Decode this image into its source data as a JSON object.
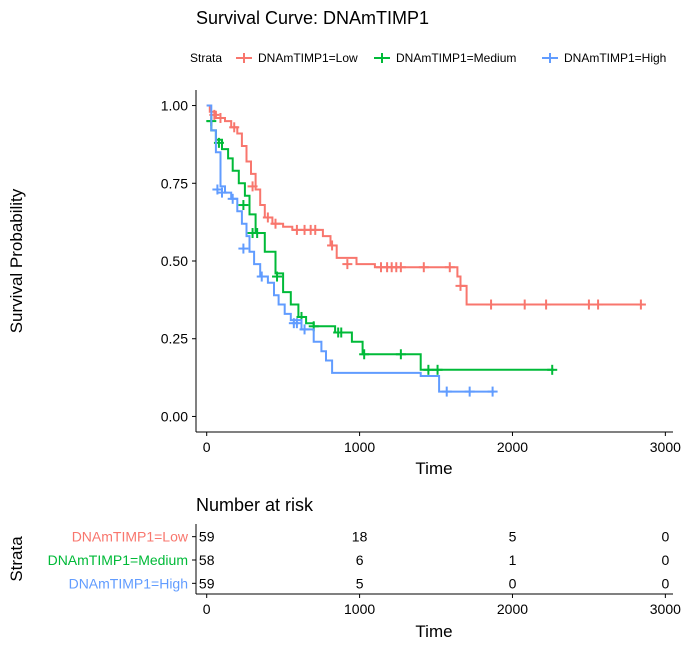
{
  "chart_data": [
    {
      "type": "line",
      "title": "Survival Curve: DNAmTIMP1",
      "xlabel": "Time",
      "ylabel": "Survival Probability",
      "xlim": [
        -70,
        3050
      ],
      "ylim": [
        -0.05,
        1.05
      ],
      "x_ticks": [
        0,
        1000,
        2000,
        3000
      ],
      "y_ticks": [
        0.0,
        0.25,
        0.5,
        0.75,
        1.0
      ],
      "y_tick_labels": [
        "0.00",
        "0.25",
        "0.50",
        "0.75",
        "1.00"
      ],
      "grid": false,
      "legend": {
        "title": "Strata",
        "position": "top",
        "entries": [
          "DNAmTIMP1=Low",
          "DNAmTIMP1=Medium",
          "DNAmTIMP1=High"
        ]
      },
      "series": [
        {
          "name": "DNAmTIMP1=Low",
          "color": "#F8766D",
          "steps": [
            [
              0,
              1.0
            ],
            [
              20,
              0.98
            ],
            [
              60,
              0.96
            ],
            [
              120,
              0.95
            ],
            [
              160,
              0.93
            ],
            [
              200,
              0.91
            ],
            [
              230,
              0.87
            ],
            [
              260,
              0.82
            ],
            [
              290,
              0.78
            ],
            [
              320,
              0.73
            ],
            [
              350,
              0.68
            ],
            [
              380,
              0.64
            ],
            [
              430,
              0.62
            ],
            [
              500,
              0.61
            ],
            [
              560,
              0.6
            ],
            [
              760,
              0.58
            ],
            [
              810,
              0.55
            ],
            [
              850,
              0.51
            ],
            [
              980,
              0.49
            ],
            [
              1100,
              0.48
            ],
            [
              1640,
              0.45
            ],
            [
              1660,
              0.42
            ],
            [
              1700,
              0.36
            ],
            [
              2860,
              0.36
            ]
          ],
          "censored": [
            [
              50,
              0.97
            ],
            [
              90,
              0.96
            ],
            [
              180,
              0.93
            ],
            [
              300,
              0.74
            ],
            [
              400,
              0.64
            ],
            [
              450,
              0.62
            ],
            [
              590,
              0.6
            ],
            [
              640,
              0.6
            ],
            [
              680,
              0.6
            ],
            [
              710,
              0.6
            ],
            [
              820,
              0.55
            ],
            [
              920,
              0.49
            ],
            [
              1140,
              0.48
            ],
            [
              1180,
              0.48
            ],
            [
              1210,
              0.48
            ],
            [
              1240,
              0.48
            ],
            [
              1270,
              0.48
            ],
            [
              1420,
              0.48
            ],
            [
              1590,
              0.48
            ],
            [
              1660,
              0.42
            ],
            [
              1860,
              0.36
            ],
            [
              2080,
              0.36
            ],
            [
              2220,
              0.36
            ],
            [
              2500,
              0.36
            ],
            [
              2560,
              0.36
            ],
            [
              2840,
              0.36
            ]
          ]
        },
        {
          "name": "DNAmTIMP1=Medium",
          "color": "#00BA38",
          "steps": [
            [
              0,
              0.95
            ],
            [
              30,
              0.92
            ],
            [
              60,
              0.89
            ],
            [
              100,
              0.86
            ],
            [
              140,
              0.83
            ],
            [
              170,
              0.79
            ],
            [
              210,
              0.75
            ],
            [
              250,
              0.71
            ],
            [
              280,
              0.65
            ],
            [
              320,
              0.59
            ],
            [
              380,
              0.53
            ],
            [
              450,
              0.46
            ],
            [
              500,
              0.4
            ],
            [
              550,
              0.36
            ],
            [
              600,
              0.32
            ],
            [
              650,
              0.3
            ],
            [
              700,
              0.29
            ],
            [
              840,
              0.27
            ],
            [
              950,
              0.24
            ],
            [
              1020,
              0.2
            ],
            [
              1380,
              0.2
            ],
            [
              1400,
              0.15
            ],
            [
              2270,
              0.15
            ]
          ],
          "censored": [
            [
              30,
              0.95
            ],
            [
              80,
              0.88
            ],
            [
              240,
              0.68
            ],
            [
              300,
              0.59
            ],
            [
              330,
              0.59
            ],
            [
              460,
              0.45
            ],
            [
              620,
              0.32
            ],
            [
              700,
              0.29
            ],
            [
              860,
              0.27
            ],
            [
              880,
              0.27
            ],
            [
              1030,
              0.2
            ],
            [
              1270,
              0.2
            ],
            [
              1450,
              0.15
            ],
            [
              1510,
              0.15
            ],
            [
              2260,
              0.15
            ]
          ]
        },
        {
          "name": "DNAmTIMP1=High",
          "color": "#619CFF",
          "steps": [
            [
              0,
              1.0
            ],
            [
              30,
              0.92
            ],
            [
              60,
              0.85
            ],
            [
              90,
              0.74
            ],
            [
              120,
              0.72
            ],
            [
              160,
              0.7
            ],
            [
              200,
              0.66
            ],
            [
              230,
              0.62
            ],
            [
              260,
              0.58
            ],
            [
              280,
              0.53
            ],
            [
              310,
              0.49
            ],
            [
              350,
              0.45
            ],
            [
              400,
              0.43
            ],
            [
              440,
              0.39
            ],
            [
              470,
              0.36
            ],
            [
              510,
              0.33
            ],
            [
              550,
              0.31
            ],
            [
              620,
              0.28
            ],
            [
              700,
              0.24
            ],
            [
              750,
              0.21
            ],
            [
              780,
              0.18
            ],
            [
              820,
              0.14
            ],
            [
              1400,
              0.13
            ],
            [
              1520,
              0.08
            ],
            [
              1880,
              0.08
            ]
          ],
          "censored": [
            [
              70,
              0.73
            ],
            [
              100,
              0.72
            ],
            [
              170,
              0.7
            ],
            [
              240,
              0.54
            ],
            [
              360,
              0.45
            ],
            [
              570,
              0.3
            ],
            [
              590,
              0.3
            ],
            [
              640,
              0.28
            ],
            [
              1570,
              0.08
            ],
            [
              1720,
              0.08
            ],
            [
              1870,
              0.08
            ]
          ]
        }
      ]
    },
    {
      "type": "table",
      "title": "Number at risk",
      "xlabel": "Time",
      "ylabel": "Strata",
      "xlim": [
        -70,
        3050
      ],
      "x_ticks": [
        0,
        1000,
        2000,
        3000
      ],
      "rows": [
        {
          "name": "DNAmTIMP1=Low",
          "color": "#F8766D",
          "values": [
            59,
            18,
            5,
            0
          ]
        },
        {
          "name": "DNAmTIMP1=Medium",
          "color": "#00BA38",
          "values": [
            58,
            6,
            1,
            0
          ]
        },
        {
          "name": "DNAmTIMP1=High",
          "color": "#619CFF",
          "values": [
            59,
            5,
            0,
            0
          ]
        }
      ]
    }
  ]
}
